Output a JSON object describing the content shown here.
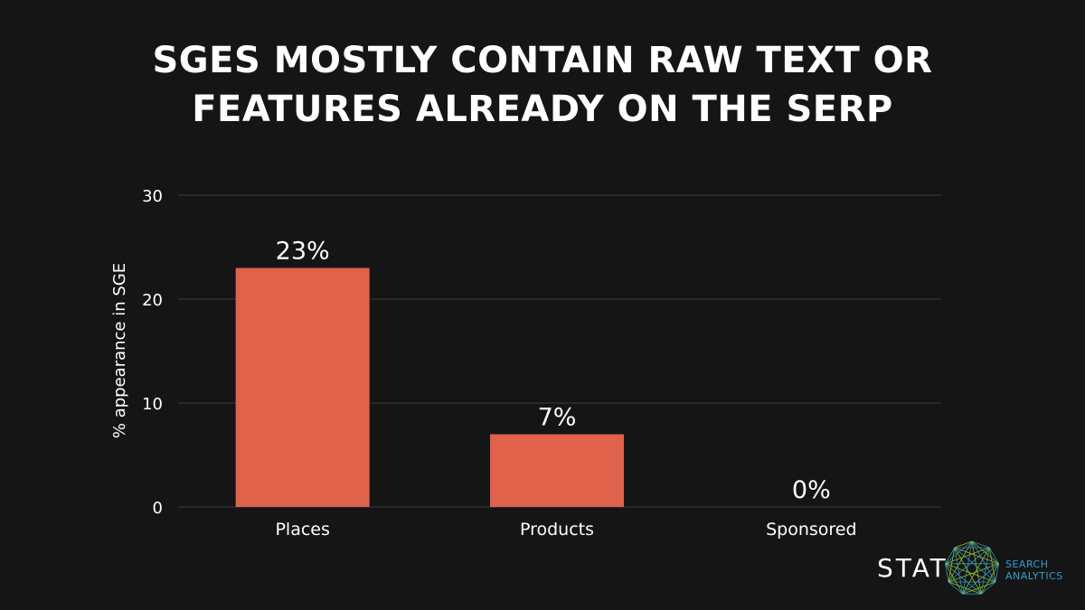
{
  "chart_data": {
    "type": "bar",
    "title_lines": [
      "SGES MOSTLY CONTAIN RAW TEXT OR",
      "FEATURES ALREADY ON THE SERP"
    ],
    "categories": [
      "Places",
      "Products",
      "Sponsored"
    ],
    "values": [
      23,
      7,
      0
    ],
    "data_labels": [
      "23%",
      "7%",
      "0%"
    ],
    "ylabel": "% appearance in SGE",
    "xlabel": "",
    "ylim": [
      0,
      30
    ],
    "yticks": [
      0,
      10,
      20,
      30
    ],
    "grid": true,
    "bar_color": "#e0624a",
    "grid_color": "#3a3a3a"
  },
  "brand": {
    "wordmark": "STAT",
    "sub_line1": "SEARCH",
    "sub_line2": "ANALYTICS",
    "logo_icon": "polygon-network-icon",
    "colors": [
      "#2f9fd0",
      "#9acd32"
    ]
  }
}
